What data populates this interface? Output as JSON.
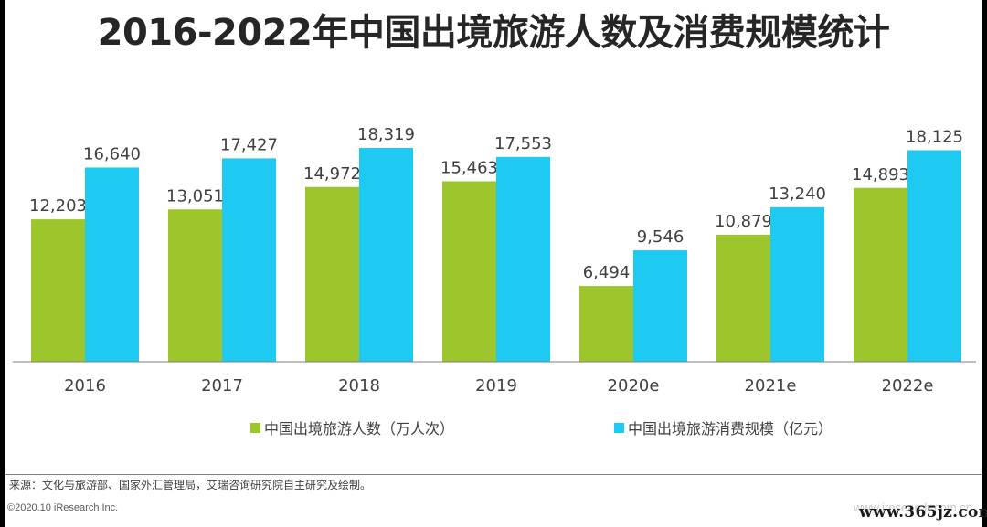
{
  "title": "2016-2022年中国出境旅游人数及消费规模统计",
  "chart_data": {
    "type": "bar",
    "categories": [
      "2016",
      "2017",
      "2018",
      "2019",
      "2020e",
      "2021e",
      "2022e"
    ],
    "series": [
      {
        "name": "中国出境旅游人数（万人次）",
        "color": "#9dc52c",
        "values": [
          12203,
          13051,
          14972,
          15463,
          6494,
          10879,
          14893
        ],
        "labels": [
          "12,203",
          "13,051",
          "14,972",
          "15,463",
          "6,494",
          "10,879",
          "14,893"
        ]
      },
      {
        "name": "中国出境旅游消费规模（亿元）",
        "color": "#1ec9f2",
        "values": [
          16640,
          17427,
          18319,
          17553,
          9546,
          13240,
          18125
        ],
        "labels": [
          "16,640",
          "17,427",
          "18,319",
          "17,553",
          "9,546",
          "13,240",
          "18,125"
        ]
      }
    ],
    "ylim": [
      0,
      18319
    ],
    "grid": false,
    "legend_position": "bottom"
  },
  "footer": {
    "source": "来源：文化与旅游部、国家外汇管理局，艾瑞咨询研究院自主研究及绘制。",
    "copyright": "©2020.10 iResearch Inc.",
    "site_faded": "www.iresearch.com.cn",
    "watermark": "www.365jz.com"
  }
}
